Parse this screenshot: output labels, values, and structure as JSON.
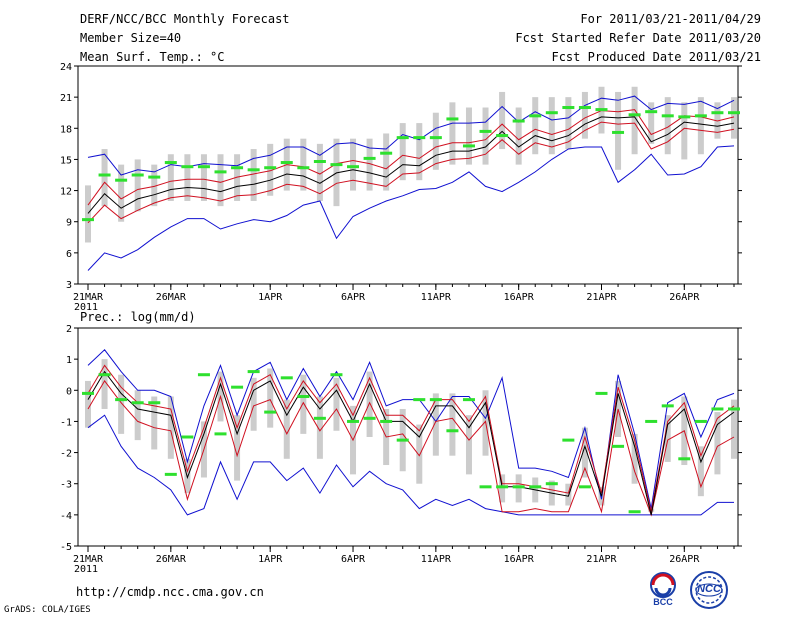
{
  "header": {
    "left": [
      "DERF/NCC/BCC Monthly Forecast",
      "Member Size=40",
      "Mean Surf. Temp.: °C"
    ],
    "right": [
      "For 2011/03/21-2011/04/29",
      "Fcst Started Refer Date 2011/03/20",
      "Fcst Produced Date 2011/03/21"
    ]
  },
  "footer": {
    "url": "http://cmdp.ncc.cma.gov.cn",
    "credit": "GrADS: COLA/IGES",
    "logo1": "BCC",
    "logo2": "NCC"
  },
  "colors": {
    "max": "#1010d0",
    "min": "#1010d0",
    "upper": "#d01020",
    "lower": "#d01020",
    "mean": "#000000",
    "marker": "#2ee02e",
    "spread": "#cccccc"
  },
  "chart_data": [
    {
      "type": "line",
      "title": "Mean Surf. Temp.: °C",
      "ylim": [
        3,
        24
      ],
      "yticks": [
        3,
        6,
        9,
        12,
        15,
        18,
        21,
        24
      ],
      "xtick_labels": [
        "21MAR",
        "26MAR",
        "1APR",
        "6APR",
        "11APR",
        "16APR",
        "21APR",
        "26APR"
      ],
      "xtick_days": [
        1,
        6,
        12,
        17,
        22,
        27,
        32,
        37
      ],
      "year_label": "2011",
      "days": 40,
      "series": [
        {
          "name": "max",
          "values": [
            15.2,
            15.5,
            13.5,
            14.0,
            13.8,
            14.5,
            14.3,
            14.6,
            14.5,
            14.4,
            15.1,
            15.4,
            16.2,
            16.2,
            15.4,
            16.5,
            16.6,
            16.1,
            16.0,
            17.4,
            16.9,
            18.0,
            18.5,
            18.5,
            18.6,
            20.1,
            18.6,
            19.6,
            18.8,
            19.0,
            20.2,
            20.9,
            20.7,
            21.1,
            19.8,
            20.4,
            20.3,
            20.6,
            19.9,
            20.7
          ]
        },
        {
          "name": "upper",
          "values": [
            10.6,
            12.8,
            11.2,
            12.1,
            12.4,
            12.9,
            13.1,
            13.1,
            12.8,
            13.3,
            13.6,
            13.9,
            14.5,
            14.3,
            13.6,
            14.6,
            14.9,
            14.6,
            14.1,
            15.4,
            15.1,
            16.2,
            16.6,
            16.6,
            16.9,
            18.4,
            16.9,
            17.9,
            17.4,
            17.9,
            19.0,
            19.7,
            19.6,
            19.8,
            17.4,
            18.1,
            19.2,
            19.1,
            18.7,
            19.1
          ]
        },
        {
          "name": "mean",
          "values": [
            9.8,
            11.7,
            10.3,
            11.2,
            11.6,
            12.1,
            12.3,
            12.2,
            11.9,
            12.4,
            12.6,
            13.0,
            13.6,
            13.4,
            12.7,
            13.7,
            14.0,
            13.7,
            13.3,
            14.5,
            14.4,
            15.4,
            15.8,
            15.8,
            16.2,
            17.7,
            16.2,
            17.3,
            16.8,
            17.3,
            18.4,
            19.1,
            19.0,
            19.1,
            16.7,
            17.4,
            18.6,
            18.4,
            18.2,
            18.5
          ]
        },
        {
          "name": "lower",
          "values": [
            8.9,
            10.6,
            9.3,
            10.1,
            10.8,
            11.3,
            11.5,
            11.3,
            11.0,
            11.5,
            11.6,
            12.0,
            12.6,
            12.4,
            11.7,
            12.7,
            13.0,
            12.7,
            12.4,
            13.6,
            13.7,
            14.6,
            15.0,
            15.1,
            15.5,
            16.9,
            15.5,
            16.6,
            16.2,
            16.7,
            17.8,
            18.6,
            18.4,
            18.5,
            16.0,
            16.7,
            18.0,
            17.8,
            17.6,
            17.9
          ]
        },
        {
          "name": "min",
          "values": [
            4.3,
            6.0,
            5.5,
            6.3,
            7.5,
            8.5,
            9.3,
            9.3,
            8.3,
            8.8,
            9.2,
            9.0,
            9.6,
            10.6,
            11.0,
            7.4,
            9.5,
            10.3,
            11.0,
            11.5,
            12.1,
            12.2,
            12.8,
            13.8,
            12.4,
            11.9,
            12.8,
            13.8,
            15.0,
            16.0,
            16.2,
            16.2,
            12.8,
            14.0,
            15.5,
            13.5,
            13.6,
            14.3,
            16.2,
            16.3
          ]
        },
        {
          "name": "marker",
          "values": [
            9.2,
            13.5,
            13.0,
            13.5,
            13.3,
            14.7,
            14.3,
            14.3,
            13.8,
            14.2,
            14.0,
            14.2,
            14.7,
            14.2,
            14.8,
            14.5,
            14.3,
            15.1,
            15.6,
            17.1,
            17.1,
            17.1,
            18.9,
            16.3,
            17.7,
            17.3,
            18.7,
            19.2,
            19.5,
            20.0,
            20.0,
            19.8,
            17.6,
            19.3,
            19.6,
            19.2,
            19.1,
            19.2,
            19.5,
            19.5
          ]
        },
        {
          "name": "spread_hi",
          "values": [
            12.5,
            16.0,
            14.5,
            15.0,
            14.5,
            15.5,
            15.5,
            15.5,
            15.5,
            15.5,
            16.0,
            16.5,
            17.0,
            17.0,
            16.5,
            17.0,
            17.0,
            17.0,
            17.5,
            18.5,
            18.5,
            19.5,
            20.5,
            20.0,
            20.0,
            21.5,
            20.0,
            21.0,
            21.0,
            21.0,
            21.5,
            22.0,
            21.5,
            22.0,
            20.5,
            21.0,
            20.5,
            21.0,
            20.5,
            21.0
          ]
        },
        {
          "name": "spread_lo",
          "values": [
            7.0,
            10.5,
            9.0,
            10.0,
            10.5,
            11.0,
            11.0,
            11.0,
            10.5,
            11.0,
            11.0,
            11.5,
            12.0,
            12.0,
            11.0,
            10.5,
            12.0,
            12.0,
            12.0,
            13.0,
            13.0,
            14.0,
            14.5,
            14.5,
            14.5,
            16.0,
            14.5,
            15.5,
            15.5,
            16.0,
            17.0,
            17.5,
            14.0,
            15.5,
            16.5,
            15.5,
            15.0,
            15.5,
            17.0,
            17.0
          ]
        }
      ]
    },
    {
      "type": "line",
      "title": "Prec.: log(mm/d)",
      "ylim": [
        -5,
        2
      ],
      "yticks": [
        -5,
        -4,
        -3,
        -2,
        -1,
        0,
        1,
        2
      ],
      "xtick_labels": [
        "21MAR",
        "26MAR",
        "1APR",
        "6APR",
        "11APR",
        "16APR",
        "21APR",
        "26APR"
      ],
      "xtick_days": [
        1,
        6,
        12,
        17,
        22,
        27,
        32,
        37
      ],
      "year_label": "2011",
      "days": 40,
      "series": [
        {
          "name": "max",
          "values": [
            0.8,
            1.3,
            0.6,
            0.0,
            0.0,
            -0.2,
            -2.3,
            -0.5,
            0.8,
            -0.8,
            0.6,
            0.9,
            -0.3,
            0.7,
            -0.2,
            0.6,
            -0.3,
            0.9,
            -0.5,
            -0.3,
            -0.3,
            -1.0,
            -0.2,
            -0.2,
            -0.9,
            0.4,
            -2.5,
            -2.5,
            -2.6,
            -2.8,
            -1.2,
            -3.5,
            0.5,
            -1.4,
            -3.8,
            -0.4,
            -0.1,
            -1.5,
            -0.3,
            -0.1
          ]
        },
        {
          "name": "upper",
          "values": [
            -0.1,
            0.8,
            0.1,
            -0.4,
            -0.5,
            -0.6,
            -2.6,
            -1.2,
            0.4,
            -1.2,
            0.2,
            0.5,
            -0.6,
            0.3,
            -0.4,
            0.2,
            -0.8,
            0.4,
            -0.8,
            -0.8,
            -1.3,
            -0.3,
            -0.3,
            -1.0,
            -0.2,
            -3.0,
            -3.0,
            -3.1,
            -3.2,
            -3.3,
            -1.5,
            -3.3,
            0.1,
            -1.6,
            -3.9,
            -1.0,
            -0.4,
            -2.1,
            -0.9,
            -0.5
          ]
        },
        {
          "name": "mean",
          "values": [
            -0.3,
            0.6,
            -0.1,
            -0.6,
            -0.7,
            -0.8,
            -2.8,
            -1.4,
            0.2,
            -1.4,
            0.0,
            0.3,
            -0.8,
            0.1,
            -0.6,
            0.0,
            -1.0,
            0.2,
            -1.0,
            -1.0,
            -1.5,
            -0.5,
            -0.5,
            -1.2,
            -0.4,
            -3.1,
            -3.1,
            -3.2,
            -3.3,
            -3.4,
            -1.8,
            -3.4,
            -0.1,
            -1.8,
            -4.0,
            -1.1,
            -0.6,
            -2.3,
            -1.1,
            -0.7
          ]
        },
        {
          "name": "lower",
          "values": [
            -0.6,
            0.3,
            -0.4,
            -1.0,
            -1.2,
            -1.3,
            -3.5,
            -1.9,
            -0.2,
            -2.1,
            -0.5,
            -0.3,
            -1.4,
            -0.4,
            -1.3,
            -0.6,
            -1.6,
            -0.4,
            -1.5,
            -1.4,
            -2.1,
            -1.0,
            -0.9,
            -1.6,
            -1.0,
            -3.9,
            -3.9,
            -3.8,
            -3.9,
            -3.9,
            -2.5,
            -3.9,
            -0.6,
            -2.6,
            -4.0,
            -1.6,
            -1.3,
            -3.1,
            -1.8,
            -1.5
          ]
        },
        {
          "name": "min",
          "values": [
            -1.2,
            -0.8,
            -1.8,
            -2.5,
            -2.8,
            -3.2,
            -4.0,
            -3.8,
            -2.3,
            -3.5,
            -2.3,
            -2.3,
            -2.9,
            -2.5,
            -3.3,
            -2.4,
            -3.1,
            -2.6,
            -3.0,
            -3.2,
            -3.8,
            -3.5,
            -3.7,
            -3.5,
            -3.8,
            -3.9,
            -4.0,
            -4.0,
            -4.0,
            -4.0,
            -4.0,
            -4.0,
            -4.0,
            -4.0,
            -4.0,
            -4.0,
            -4.0,
            -4.0,
            -3.6,
            -3.6
          ]
        },
        {
          "name": "marker",
          "values": [
            -0.1,
            0.5,
            -0.3,
            -0.4,
            -0.4,
            -2.7,
            -1.5,
            0.5,
            -1.4,
            0.1,
            0.6,
            -0.7,
            0.4,
            -0.2,
            -0.9,
            0.5,
            -1.0,
            -0.9,
            -1.0,
            -1.6,
            -0.3,
            -0.3,
            -1.3,
            -0.3,
            -3.1,
            -3.1,
            -3.1,
            -3.1,
            -3.0,
            -1.6,
            -3.1,
            -0.1,
            -1.8,
            -3.9,
            -1.0,
            -0.5,
            -2.2,
            -1.0,
            -0.6,
            -0.6
          ]
        },
        {
          "name": "spread_hi",
          "values": [
            0.3,
            1.0,
            0.5,
            0.0,
            -0.2,
            -0.2,
            -2.2,
            -1.0,
            0.6,
            -0.8,
            0.4,
            0.7,
            -0.3,
            0.5,
            -0.2,
            0.4,
            -0.5,
            0.6,
            -0.6,
            -0.6,
            -1.1,
            -0.1,
            -0.1,
            -0.8,
            0.0,
            -2.7,
            -2.7,
            -2.8,
            -2.9,
            -3.0,
            -1.2,
            -3.1,
            0.3,
            -1.4,
            -3.8,
            -0.8,
            -0.2,
            -1.8,
            -0.7,
            -0.3
          ]
        },
        {
          "name": "spread_lo",
          "values": [
            -1.2,
            -0.6,
            -1.4,
            -1.6,
            -1.9,
            -2.2,
            -3.3,
            -2.8,
            -1.0,
            -2.9,
            -1.3,
            -1.2,
            -2.2,
            -1.4,
            -2.2,
            -1.3,
            -2.7,
            -1.5,
            -2.4,
            -2.6,
            -3.0,
            -2.1,
            -2.1,
            -2.7,
            -2.1,
            -3.6,
            -3.6,
            -3.6,
            -3.7,
            -3.7,
            -2.8,
            -3.7,
            -1.5,
            -3.0,
            -3.9,
            -2.3,
            -2.4,
            -3.4,
            -2.7,
            -2.2
          ]
        }
      ]
    }
  ]
}
